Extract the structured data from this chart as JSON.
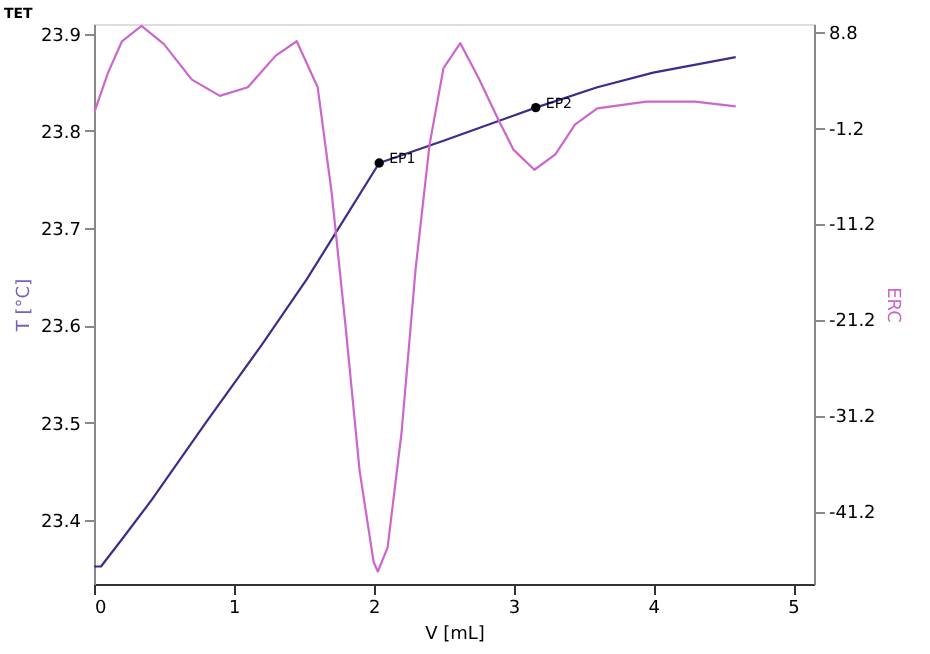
{
  "chart_data": {
    "type": "line",
    "title": "TET",
    "xlabel": "V [mL]",
    "ylabel": "T [°C]",
    "y2label": "ERC",
    "xlim": [
      0,
      5.15
    ],
    "xticks": [
      0,
      1,
      2,
      3,
      4,
      5
    ],
    "ylim": [
      23.334,
      23.91
    ],
    "yticks": [
      23.4,
      23.5,
      23.6,
      23.7,
      23.8,
      23.9
    ],
    "y2lim": [
      -48.8,
      9.6
    ],
    "y2ticks": [
      -41.2,
      -31.2,
      -21.2,
      -11.2,
      -1.2,
      8.8
    ],
    "grid": false,
    "series": [
      {
        "axis": "y",
        "color": "#3a2d8c",
        "x": [
          0,
          0.05,
          0.2,
          0.41,
          0.8,
          1.2,
          1.52,
          1.75,
          2.04,
          2.5,
          3.16,
          3.6,
          4.0,
          4.59
        ],
        "values": [
          23.352,
          23.352,
          23.38,
          23.42,
          23.5,
          23.58,
          23.647,
          23.7,
          23.767,
          23.79,
          23.824,
          23.845,
          23.86,
          23.876
        ]
      },
      {
        "type": "scatter",
        "axis": "y",
        "color": "#000000",
        "marker": "circle",
        "x": [
          2.04,
          3.16
        ],
        "values": [
          23.767,
          23.824
        ]
      },
      {
        "axis": "y2",
        "color": "#cc66cc",
        "x": [
          0,
          0.1,
          0.2,
          0.34,
          0.5,
          0.7,
          0.9,
          1.1,
          1.3,
          1.45,
          1.6,
          1.7,
          1.8,
          1.9,
          2.0,
          2.03,
          2.1,
          2.2,
          2.3,
          2.4,
          2.5,
          2.62,
          2.75,
          2.89,
          3.0,
          3.15,
          3.3,
          3.44,
          3.6,
          3.95,
          4.3,
          4.59
        ],
        "values": [
          0.3,
          4.5,
          7.8,
          9.4,
          7.5,
          3.8,
          2.1,
          3,
          6.3,
          7.8,
          3,
          -8,
          -22,
          -37,
          -46.5,
          -47.5,
          -45,
          -33,
          -16,
          -3,
          5,
          7.6,
          4,
          -0.3,
          -3.5,
          -5.6,
          -4,
          -0.9,
          0.8,
          1.5,
          1.5,
          1.0
        ]
      }
    ],
    "annotations": [
      {
        "text": "EP1",
        "x": 2.04,
        "y": 23.767
      },
      {
        "text": "EP2",
        "x": 3.16,
        "y": 23.824
      }
    ]
  }
}
